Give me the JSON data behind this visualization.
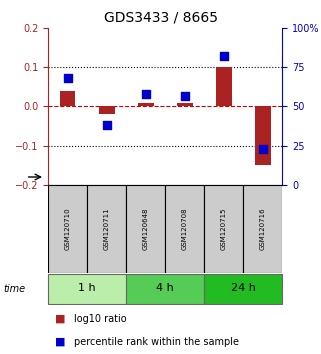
{
  "title": "GDS3433 / 8665",
  "samples": [
    "GSM120710",
    "GSM120711",
    "GSM120648",
    "GSM120708",
    "GSM120715",
    "GSM120716"
  ],
  "log10_ratio": [
    0.04,
    -0.02,
    0.01,
    0.01,
    0.1,
    -0.15
  ],
  "percentile_rank": [
    68,
    38,
    58,
    57,
    82,
    23
  ],
  "ylim_left": [
    -0.2,
    0.2
  ],
  "ylim_right": [
    0,
    100
  ],
  "yticks_left": [
    -0.2,
    -0.1,
    0.0,
    0.1,
    0.2
  ],
  "yticks_right": [
    0,
    25,
    50,
    75,
    100
  ],
  "ytick_labels_right": [
    "0",
    "25",
    "50",
    "75",
    "100%"
  ],
  "bar_color": "#aa2222",
  "point_color": "#0000cc",
  "groups": [
    {
      "label": "1 h",
      "indices": [
        0,
        1
      ],
      "color": "#bbeeaa"
    },
    {
      "label": "4 h",
      "indices": [
        2,
        3
      ],
      "color": "#55cc55"
    },
    {
      "label": "24 h",
      "indices": [
        4,
        5
      ],
      "color": "#22bb22"
    }
  ],
  "time_label": "time",
  "legend_red": "log10 ratio",
  "legend_blue": "percentile rank within the sample",
  "dotted_values": [
    -0.1,
    0.1
  ],
  "dashed_zero_color": "#cc0000",
  "grid_color": "#000000",
  "bar_width": 0.4,
  "point_size": 30,
  "title_fontsize": 10,
  "tick_fontsize": 7,
  "label_fontsize": 7,
  "sample_fontsize": 5,
  "legend_fontsize": 7
}
